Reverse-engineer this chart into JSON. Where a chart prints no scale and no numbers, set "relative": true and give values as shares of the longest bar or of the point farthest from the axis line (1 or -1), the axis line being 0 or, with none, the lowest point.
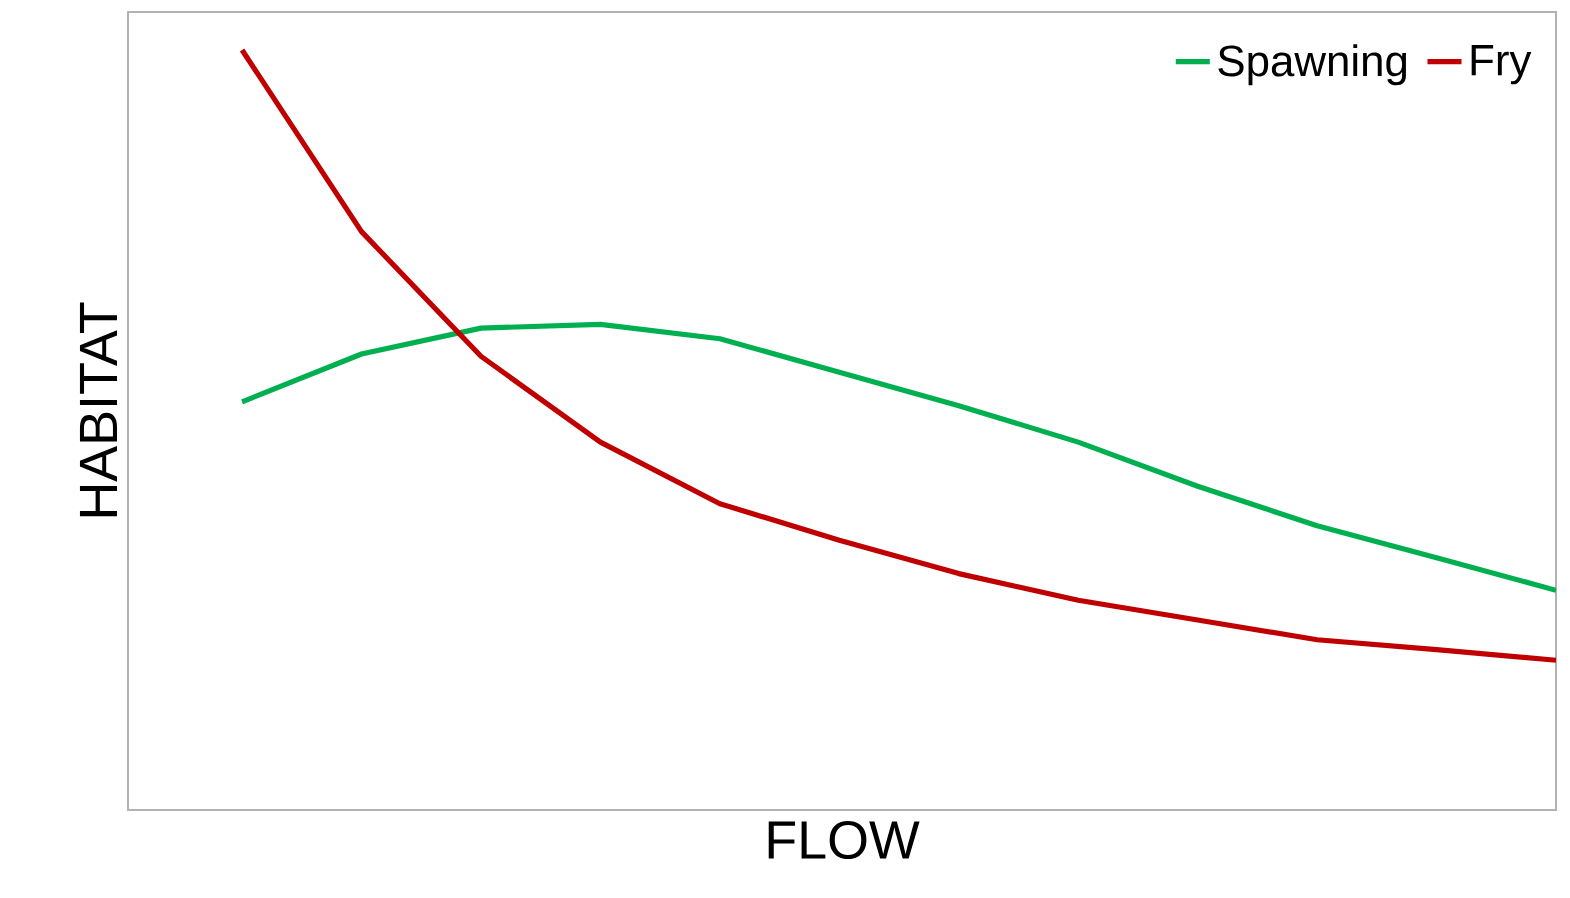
{
  "chart_data": {
    "type": "line",
    "relative": true,
    "xlabel": "FLOW",
    "ylabel": "HABITAT",
    "legend": "top right",
    "categories": [
      null,
      null,
      null,
      null,
      null,
      null,
      null,
      null,
      null,
      null,
      null,
      null
    ],
    "series": [
      {
        "name": "Spawning",
        "color": "#00b050",
        "values": [
          0.537,
          0.6,
          0.634,
          0.639,
          0.62,
          0.576,
          0.532,
          0.484,
          0.426,
          0.374,
          0.332,
          0.289
        ]
      },
      {
        "name": "Fry",
        "color": "#c00000",
        "values": [
          1.0,
          0.761,
          0.597,
          0.484,
          0.403,
          0.355,
          0.311,
          0.276,
          0.25,
          0.224,
          0.211,
          0.197
        ]
      }
    ]
  }
}
